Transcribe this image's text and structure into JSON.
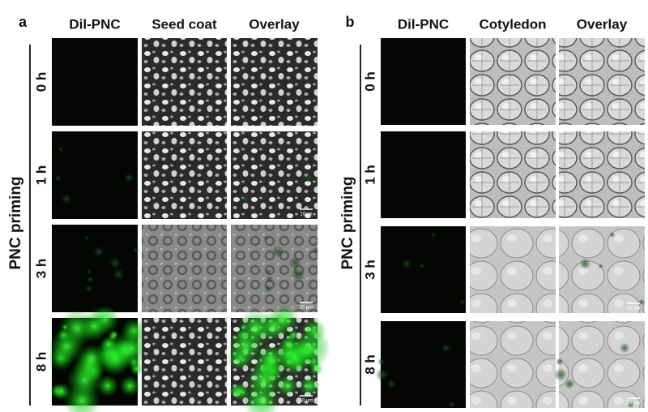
{
  "panels": [
    {
      "label": "a",
      "columns": [
        "Dil-PNC",
        "Seed coat",
        "Overlay"
      ],
      "y_label": "PNC priming",
      "rows": [
        {
          "time": "0 h"
        },
        {
          "time": "1 h",
          "scale_bar": "10μm"
        },
        {
          "time": "3 h",
          "scale_bar": "10 μm"
        },
        {
          "time": "8 h",
          "scale_bar": "10 μm"
        }
      ]
    },
    {
      "label": "b",
      "columns": [
        "Dil-PNC",
        "Cotyledon",
        "Overlay"
      ],
      "y_label": "PNC priming",
      "rows": [
        {
          "time": "0 h"
        },
        {
          "time": "1 h"
        },
        {
          "time": "3 h",
          "scale_bar": "10 μm"
        },
        {
          "time": "8 h",
          "scale_bar": "10 μm"
        }
      ]
    }
  ]
}
